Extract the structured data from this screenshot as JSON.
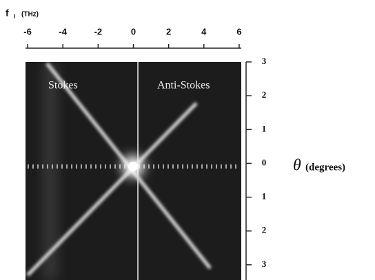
{
  "chart_data": {
    "type": "image",
    "x_label": {
      "symbol": "f",
      "subscript": "i",
      "unit": "(THz)"
    },
    "y_label": {
      "symbol": "θ",
      "unit": "(degrees)"
    },
    "annotations": [
      "Stokes",
      "Anti-Stokes"
    ],
    "xlim": [
      -6.12,
      6.12
    ],
    "xticks": [
      -6,
      -4,
      -2,
      0,
      2,
      4,
      6
    ],
    "ylim": [
      -3.45,
      3
    ],
    "yticks": [
      3,
      2,
      1,
      0,
      {
        "value": -1,
        "label": "1"
      },
      {
        "value": -2,
        "label": "2"
      },
      {
        "value": -3,
        "label": "3"
      }
    ]
  }
}
